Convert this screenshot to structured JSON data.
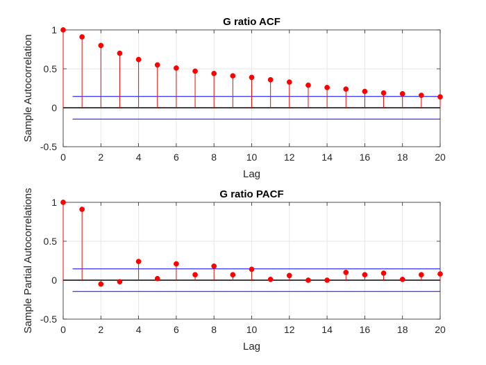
{
  "chart_data": [
    {
      "type": "stem",
      "title": "G ratio ACF",
      "xlabel": "Lag",
      "ylabel": "Sample Autocorrelation",
      "xlim": [
        0,
        20
      ],
      "ylim": [
        -0.5,
        1
      ],
      "xticks": [
        0,
        2,
        4,
        6,
        8,
        10,
        12,
        14,
        16,
        18,
        20
      ],
      "yticks": [
        -0.5,
        0,
        0.5,
        1
      ],
      "ytick_labels": [
        "-0.5",
        "0",
        "0.5",
        "1"
      ],
      "grid": true,
      "x": [
        0,
        1,
        2,
        3,
        4,
        5,
        6,
        7,
        8,
        9,
        10,
        11,
        12,
        13,
        14,
        15,
        16,
        17,
        18,
        19,
        20
      ],
      "values": [
        1.0,
        0.91,
        0.8,
        0.7,
        0.62,
        0.55,
        0.51,
        0.47,
        0.44,
        0.41,
        0.39,
        0.36,
        0.33,
        0.29,
        0.26,
        0.24,
        0.21,
        0.19,
        0.18,
        0.16,
        0.14
      ],
      "confidence_bounds": [
        0.145,
        -0.145
      ],
      "colors": {
        "stem": "#ff0000",
        "bounds": "#0000ff",
        "zero_line": "#000000"
      }
    },
    {
      "type": "stem",
      "title": "G ratio PACF",
      "xlabel": "Lag",
      "ylabel": "Sample Partial Autocorrelations",
      "xlim": [
        0,
        20
      ],
      "ylim": [
        -0.5,
        1
      ],
      "xticks": [
        0,
        2,
        4,
        6,
        8,
        10,
        12,
        14,
        16,
        18,
        20
      ],
      "yticks": [
        -0.5,
        0,
        0.5,
        1
      ],
      "ytick_labels": [
        "-0.5",
        "0",
        "0.5",
        "1"
      ],
      "grid": true,
      "x": [
        0,
        1,
        2,
        3,
        4,
        5,
        6,
        7,
        8,
        9,
        10,
        11,
        12,
        13,
        14,
        15,
        16,
        17,
        18,
        19,
        20
      ],
      "values": [
        1.0,
        0.91,
        -0.05,
        -0.02,
        0.24,
        0.02,
        0.21,
        0.07,
        0.18,
        0.07,
        0.14,
        0.01,
        0.06,
        0.0,
        0.0,
        0.1,
        0.07,
        0.09,
        0.01,
        0.07,
        0.08
      ],
      "confidence_bounds": [
        0.145,
        -0.145
      ],
      "colors": {
        "stem": "#ff0000",
        "bounds": "#0000ff",
        "zero_line": "#000000"
      }
    }
  ]
}
